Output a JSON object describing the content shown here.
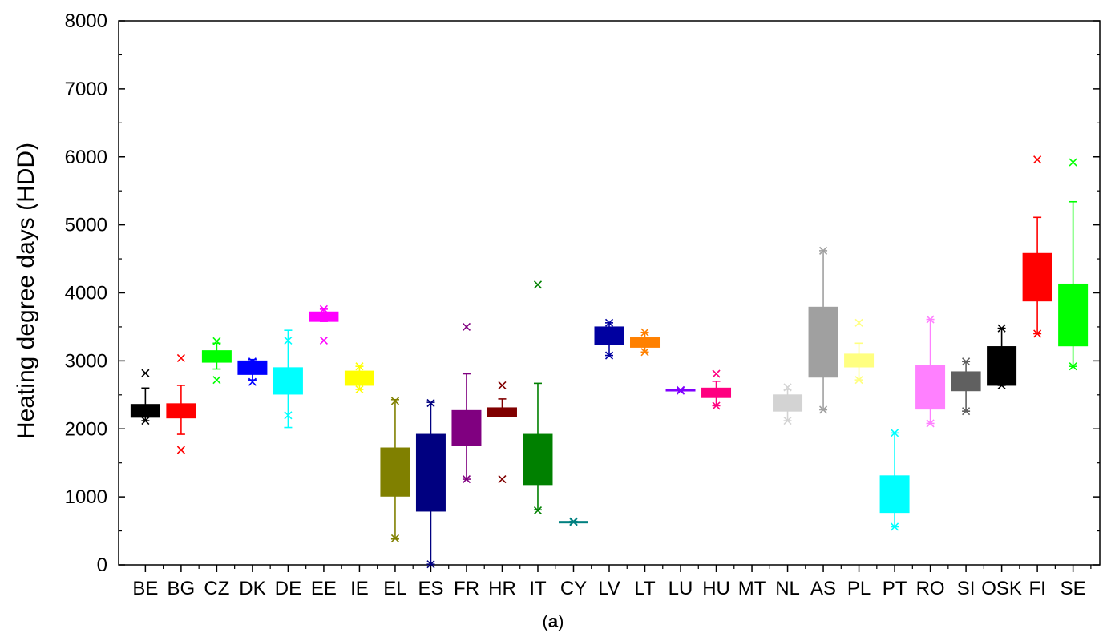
{
  "chart_data": {
    "type": "box",
    "ylabel": "Heating degree days (HDD)",
    "xlabel": "",
    "ylim": [
      0,
      8000
    ],
    "yticks": [
      0,
      1000,
      2000,
      3000,
      4000,
      5000,
      6000,
      7000,
      8000
    ],
    "grid": false,
    "legend": "none",
    "caption": {
      "open": "(",
      "letter": "a",
      "close": ")"
    },
    "categories": [
      "BE",
      "BG",
      "CZ",
      "DK",
      "DE",
      "EE",
      "IE",
      "EL",
      "ES",
      "FR",
      "HR",
      "IT",
      "CY",
      "LV",
      "LT",
      "LU",
      "HU",
      "MT",
      "NL",
      "AS",
      "PL",
      "PT",
      "RO",
      "SI",
      "OSK",
      "FI",
      "SE"
    ],
    "boxes": [
      {
        "label": "BE",
        "color": "#000000",
        "q1": 2170,
        "q3": 2360,
        "wlo": 2120,
        "whi": 2600,
        "outliers": [
          2820,
          2120
        ]
      },
      {
        "label": "BG",
        "color": "#ff0000",
        "q1": 2160,
        "q3": 2370,
        "wlo": 1920,
        "whi": 2640,
        "outliers": [
          3040,
          1690
        ]
      },
      {
        "label": "CZ",
        "color": "#00ff00",
        "q1": 2980,
        "q3": 3150,
        "wlo": 2880,
        "whi": 3260,
        "outliers": [
          3290,
          2720
        ]
      },
      {
        "label": "DK",
        "color": "#0000ff",
        "q1": 2800,
        "q3": 3000,
        "wlo": 2720,
        "whi": 3020,
        "outliers": [
          2990,
          2690
        ]
      },
      {
        "label": "DE",
        "color": "#00ffff",
        "q1": 2510,
        "q3": 2900,
        "wlo": 2020,
        "whi": 3450,
        "outliers": [
          3300,
          2200
        ]
      },
      {
        "label": "EE",
        "color": "#ff00ff",
        "q1": 3580,
        "q3": 3720,
        "wlo": 3580,
        "whi": 3760,
        "outliers": [
          3760,
          3300
        ]
      },
      {
        "label": "IE",
        "color": "#ffff00",
        "q1": 2640,
        "q3": 2850,
        "wlo": 2580,
        "whi": 2920,
        "outliers": [
          2920,
          2580
        ]
      },
      {
        "label": "EL",
        "color": "#808000",
        "q1": 1010,
        "q3": 1720,
        "wlo": 380,
        "whi": 2430,
        "outliers": [
          2410,
          390
        ]
      },
      {
        "label": "ES",
        "color": "#000080",
        "q1": 790,
        "q3": 1920,
        "wlo": 10,
        "whi": 2390,
        "outliers": [
          2380,
          10
        ]
      },
      {
        "label": "FR",
        "color": "#800080",
        "q1": 1760,
        "q3": 2270,
        "wlo": 1260,
        "whi": 2810,
        "outliers": [
          3500,
          1260
        ]
      },
      {
        "label": "HR",
        "color": "#800000",
        "q1": 2180,
        "q3": 2310,
        "wlo": 2180,
        "whi": 2440,
        "outliers": [
          2640,
          1260
        ]
      },
      {
        "label": "IT",
        "color": "#008000",
        "q1": 1180,
        "q3": 1920,
        "wlo": 810,
        "whi": 2670,
        "outliers": [
          4120,
          800
        ]
      },
      {
        "label": "CY",
        "color": "#008080",
        "q1": 630,
        "q3": 640,
        "wlo": 630,
        "whi": 640,
        "outliers": [
          640,
          630
        ]
      },
      {
        "label": "LV",
        "color": "#0000a0",
        "q1": 3240,
        "q3": 3500,
        "wlo": 3080,
        "whi": 3560,
        "outliers": [
          3560,
          3080
        ]
      },
      {
        "label": "LT",
        "color": "#ff8000",
        "q1": 3200,
        "q3": 3340,
        "wlo": 3130,
        "whi": 3420,
        "outliers": [
          3420,
          3130
        ]
      },
      {
        "label": "LU",
        "color": "#8000ff",
        "q1": 2560,
        "q3": 2580,
        "wlo": 2560,
        "whi": 2580,
        "outliers": [
          2570,
          2560
        ]
      },
      {
        "label": "HU",
        "color": "#ff0080",
        "q1": 2460,
        "q3": 2600,
        "wlo": 2340,
        "whi": 2700,
        "outliers": [
          2810,
          2340
        ]
      },
      {
        "label": "MT",
        "color": "#ffffff",
        "q1": null,
        "q3": null,
        "wlo": null,
        "whi": null,
        "outliers": []
      },
      {
        "label": "NL",
        "color": "#d3d3d3",
        "q1": 2260,
        "q3": 2500,
        "wlo": 2120,
        "whi": 2580,
        "outliers": [
          2610,
          2120
        ]
      },
      {
        "label": "AS",
        "color": "#a0a0a0",
        "q1": 2760,
        "q3": 3790,
        "wlo": 2280,
        "whi": 4620,
        "outliers": [
          4620,
          2280
        ]
      },
      {
        "label": "PL",
        "color": "#ffff80",
        "q1": 2910,
        "q3": 3100,
        "wlo": 2720,
        "whi": 3260,
        "outliers": [
          3560,
          2720
        ]
      },
      {
        "label": "PT",
        "color": "#00ffff",
        "q1": 770,
        "q3": 1310,
        "wlo": 560,
        "whi": 1940,
        "outliers": [
          1940,
          560
        ]
      },
      {
        "label": "RO",
        "color": "#ff80ff",
        "q1": 2290,
        "q3": 2930,
        "wlo": 2080,
        "whi": 3610,
        "outliers": [
          3610,
          2080
        ]
      },
      {
        "label": "SI",
        "color": "#606060",
        "q1": 2560,
        "q3": 2840,
        "wlo": 2260,
        "whi": 2990,
        "outliers": [
          2990,
          2260
        ]
      },
      {
        "label": "OSK",
        "color": "#000000",
        "q1": 2640,
        "q3": 3210,
        "wlo": 2640,
        "whi": 3480,
        "outliers": [
          3480,
          2640
        ]
      },
      {
        "label": "FI",
        "color": "#ff0000",
        "q1": 3880,
        "q3": 4580,
        "wlo": 3400,
        "whi": 5110,
        "outliers": [
          5960,
          3400
        ]
      },
      {
        "label": "SE",
        "color": "#00ff00",
        "q1": 3220,
        "q3": 4130,
        "wlo": 2920,
        "whi": 5340,
        "outliers": [
          5920,
          2920
        ]
      }
    ]
  }
}
